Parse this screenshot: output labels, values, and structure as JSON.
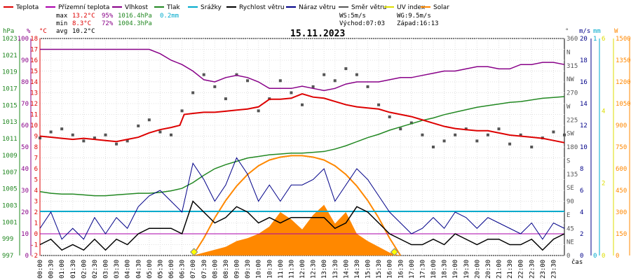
{
  "chart_data": {
    "type": "line",
    "title": "15.11.2023",
    "legend": [
      {
        "name": "Teplota",
        "color": "#dd0000"
      },
      {
        "name": "Přízemní teplota",
        "color": "#aa00aa"
      },
      {
        "name": "Vlhkost",
        "color": "#880088"
      },
      {
        "name": "Tlak",
        "color": "#228822"
      },
      {
        "name": "Srážky",
        "color": "#00aacc"
      },
      {
        "name": "Rychlost větru",
        "color": "#000000"
      },
      {
        "name": "Náraz větru",
        "color": "#000088"
      },
      {
        "name": "Směr větru",
        "color": "#555555"
      },
      {
        "name": "UV index",
        "color": "#dddd00"
      },
      {
        "name": "Solar",
        "color": "#ff8800"
      }
    ],
    "stats": {
      "max_label": "max",
      "max_temp": "13.2°C",
      "max_hum": "95%",
      "max_press": "1016.4hPa",
      "max_rain": "0.2mm",
      "min_label": "min",
      "min_temp": "8.3°C",
      "min_hum": "72%",
      "min_press": "1004.3hPa",
      "avg_label": "avg",
      "avg_temp": "10.2°C"
    },
    "wind_info": {
      "ws": "WS:5m/s",
      "wg": "WG:9.5m/s",
      "sunrise": "Východ:07:03",
      "sunset": "Západ:16:13"
    },
    "axis_units": {
      "hpa": "hPa",
      "pct": "%",
      "degc": "°C",
      "deg": "°",
      "ms": "m/s",
      "mm": "mm",
      "w": "W",
      "time": "čas"
    },
    "axes": {
      "hpa": {
        "color": "#228822",
        "ticks": [
          "1023",
          "1021",
          "1019",
          "1017",
          "1015",
          "1013",
          "1011",
          "1009",
          "1007",
          "1005",
          "1003",
          "1001",
          "999",
          "997"
        ]
      },
      "pct": {
        "color": "#880088",
        "ticks": [
          "100",
          "90",
          "80",
          "70",
          "60",
          "50",
          "40",
          "30",
          "20",
          "10",
          "0"
        ]
      },
      "degc": {
        "color": "#dd0000",
        "ticks": [
          "18",
          "17",
          "16",
          "15",
          "14",
          "13",
          "12",
          "11",
          "10",
          "9",
          "8",
          "7",
          "6",
          "5",
          "4",
          "3",
          "2",
          "1",
          "0",
          "-1",
          "-2"
        ]
      },
      "dir": {
        "color": "#555555",
        "ticks": [
          "360",
          "N",
          "315",
          "NW",
          "270",
          "W",
          "225",
          "SW",
          "180",
          "S",
          "135",
          "SE",
          "90",
          "E",
          "45",
          "NE",
          "0"
        ]
      },
      "ms": {
        "color": "#000088",
        "ticks": [
          "20",
          "18",
          "16",
          "14",
          "12",
          "10",
          "8",
          "6",
          "4",
          "2",
          "0"
        ]
      },
      "mm": {
        "color": "#00aacc",
        "ticks": [
          "1",
          "0"
        ]
      },
      "uv": {
        "color": "#dddd00",
        "ticks": [
          "6",
          "4",
          "2",
          "0"
        ]
      },
      "w": {
        "color": "#ff8800",
        "ticks": [
          "1500",
          "1350",
          "1200",
          "1050",
          "900",
          "750",
          "600",
          "450",
          "300",
          "150",
          "0"
        ]
      }
    },
    "x_ticks": [
      "00:00",
      "00:30",
      "01:00",
      "01:30",
      "02:00",
      "02:30",
      "03:00",
      "03:30",
      "04:00",
      "04:30",
      "05:00",
      "05:30",
      "06:00",
      "06:30",
      "07:00",
      "07:30",
      "08:00",
      "08:30",
      "09:00",
      "09:30",
      "10:00",
      "10:30",
      "11:00",
      "11:30",
      "12:00",
      "12:30",
      "13:00",
      "13:30",
      "14:00",
      "14:30",
      "15:00",
      "15:30",
      "16:00",
      "16:30",
      "17:00",
      "17:30",
      "18:00",
      "18:30",
      "19:00",
      "19:30",
      "20:00",
      "20:30",
      "21:00",
      "21:30",
      "22:00",
      "22:30",
      "23:00",
      "23:30"
    ],
    "series": {
      "teplota": {
        "x": [
          0,
          0.5,
          1,
          1.5,
          2,
          2.5,
          3,
          3.5,
          4,
          4.5,
          5,
          5.5,
          6,
          6.4,
          6.6,
          7,
          7.5,
          8,
          8.5,
          9,
          9.5,
          10,
          10.5,
          11,
          11.5,
          12,
          12.5,
          13,
          13.5,
          14,
          14.5,
          15,
          15.5,
          16,
          16.5,
          17,
          17.5,
          18,
          18.5,
          19,
          19.5,
          20,
          20.5,
          21,
          21.5,
          22,
          22.5,
          23,
          23.5,
          24
        ],
        "y": [
          9.0,
          8.9,
          8.8,
          8.7,
          8.8,
          8.7,
          8.6,
          8.5,
          8.7,
          8.9,
          9.3,
          9.6,
          9.8,
          10.0,
          11.0,
          11.1,
          11.2,
          11.2,
          11.3,
          11.4,
          11.5,
          11.7,
          12.4,
          12.4,
          12.5,
          12.9,
          12.6,
          12.5,
          12.2,
          11.9,
          11.7,
          11.6,
          11.5,
          11.2,
          11.0,
          10.8,
          10.5,
          10.2,
          9.9,
          9.7,
          9.6,
          9.5,
          9.5,
          9.3,
          9.1,
          9.0,
          8.9,
          8.8,
          8.6,
          8.4
        ]
      },
      "vlhkost": {
        "x": [
          0,
          1,
          2,
          3,
          4,
          5,
          5.5,
          6,
          6.5,
          7,
          7.5,
          8,
          8.5,
          9,
          9.5,
          10,
          10.5,
          11,
          11.5,
          12,
          12.5,
          13,
          13.5,
          14,
          14.5,
          15,
          15.5,
          16,
          16.5,
          17,
          17.5,
          18,
          18.5,
          19,
          19.5,
          20,
          20.5,
          21,
          21.5,
          22,
          22.5,
          23,
          23.5,
          24
        ],
        "y": [
          95,
          95,
          95,
          95,
          95,
          95,
          93,
          90,
          88,
          85,
          81,
          80,
          82,
          83,
          82,
          80,
          77,
          77,
          77,
          78,
          77,
          76,
          77,
          79,
          80,
          80,
          80,
          81,
          82,
          82,
          83,
          84,
          85,
          85,
          86,
          87,
          87,
          86,
          86,
          88,
          88,
          89,
          89,
          88
        ]
      },
      "tlak": {
        "x": [
          0,
          0.5,
          1,
          1.5,
          2,
          2.5,
          3,
          3.5,
          4,
          4.5,
          5,
          5.5,
          6,
          6.5,
          7,
          7.5,
          8,
          8.5,
          9,
          9.5,
          10,
          10.5,
          11,
          11.5,
          12,
          12.5,
          13,
          13.5,
          14,
          14.5,
          15,
          15.5,
          16,
          16.5,
          17,
          17.5,
          18,
          18.5,
          19,
          19.5,
          20,
          20.5,
          21,
          21.5,
          22,
          22.5,
          23,
          23.5,
          24
        ],
        "y": [
          1004.8,
          1004.6,
          1004.5,
          1004.5,
          1004.4,
          1004.3,
          1004.3,
          1004.4,
          1004.5,
          1004.6,
          1004.6,
          1004.7,
          1004.9,
          1005.2,
          1005.9,
          1006.8,
          1007.6,
          1008.1,
          1008.5,
          1008.9,
          1009.1,
          1009.3,
          1009.4,
          1009.5,
          1009.5,
          1009.6,
          1009.7,
          1010.0,
          1010.4,
          1010.9,
          1011.4,
          1011.8,
          1012.3,
          1012.7,
          1013.1,
          1013.5,
          1013.8,
          1014.2,
          1014.5,
          1014.8,
          1015.1,
          1015.3,
          1015.5,
          1015.7,
          1015.8,
          1016.0,
          1016.2,
          1016.3,
          1016.4
        ]
      },
      "srazky": {
        "x": [
          0,
          24
        ],
        "y": [
          0.2,
          0.2
        ]
      },
      "rychlost": {
        "x": [
          0,
          0.5,
          1,
          1.5,
          2,
          2.5,
          3,
          3.5,
          4,
          4.5,
          5,
          5.5,
          6,
          6.5,
          7,
          7.5,
          8,
          8.5,
          9,
          9.5,
          10,
          10.5,
          11,
          11.5,
          12,
          12.5,
          13,
          13.5,
          14,
          14.5,
          15,
          15.5,
          16,
          16.5,
          17,
          17.5,
          18,
          18.5,
          19,
          19.5,
          20,
          20.5,
          21,
          21.5,
          22,
          22.5,
          23,
          23.5,
          24
        ],
        "y": [
          1.0,
          1.5,
          0.5,
          1.0,
          0.5,
          1.5,
          0.5,
          1.5,
          1.0,
          2.0,
          2.5,
          2.5,
          2.5,
          2.0,
          5.0,
          4.0,
          3.0,
          3.5,
          4.5,
          4.0,
          3.0,
          3.5,
          3.0,
          3.5,
          3.5,
          3.5,
          3.5,
          2.5,
          3.0,
          4.5,
          4.0,
          3.0,
          2.0,
          1.5,
          1.0,
          1.0,
          1.5,
          1.0,
          2.0,
          1.5,
          1.0,
          1.5,
          1.5,
          1.0,
          1.0,
          1.5,
          0.5,
          1.5,
          2.0
        ]
      },
      "naraz": {
        "x": [
          0,
          0.5,
          1,
          1.5,
          2,
          2.5,
          3,
          3.5,
          4,
          4.5,
          5,
          5.5,
          6,
          6.5,
          7,
          7.5,
          8,
          8.5,
          9,
          9.5,
          10,
          10.5,
          11,
          11.5,
          12,
          12.5,
          13,
          13.5,
          14,
          14.5,
          15,
          15.5,
          16,
          16.5,
          17,
          17.5,
          18,
          18.5,
          19,
          19.5,
          20,
          20.5,
          21,
          21.5,
          22,
          22.5,
          23,
          23.5,
          24
        ],
        "y": [
          2.5,
          4.0,
          1.5,
          2.5,
          1.5,
          3.5,
          2.0,
          3.5,
          2.5,
          4.5,
          5.5,
          6.0,
          5.0,
          4.0,
          8.5,
          7.0,
          5.0,
          6.5,
          9.0,
          7.5,
          5.0,
          6.5,
          5.0,
          6.5,
          6.5,
          7.0,
          8.0,
          5.0,
          6.5,
          8.0,
          7.0,
          5.5,
          4.0,
          3.0,
          2.0,
          2.5,
          3.5,
          2.5,
          4.0,
          3.5,
          2.5,
          3.5,
          3.0,
          2.5,
          2.0,
          3.0,
          1.5,
          3.0,
          2.5
        ]
      },
      "smer": {
        "x": [
          0,
          0.5,
          1,
          1.5,
          2,
          2.5,
          3,
          3.5,
          4,
          4.5,
          5,
          5.5,
          6,
          6.5,
          7,
          7.5,
          8,
          8.5,
          9,
          9.5,
          10,
          10.5,
          11,
          11.5,
          12,
          12.5,
          13,
          13.5,
          14,
          14.5,
          15,
          15.5,
          16,
          16.5,
          17,
          17.5,
          18,
          18.5,
          19,
          19.5,
          20,
          20.5,
          21,
          21.5,
          22,
          22.5,
          23,
          23.5,
          24
        ],
        "y": [
          195,
          205,
          210,
          200,
          190,
          195,
          200,
          185,
          190,
          215,
          225,
          205,
          200,
          240,
          270,
          300,
          280,
          260,
          300,
          290,
          240,
          260,
          290,
          270,
          250,
          280,
          300,
          290,
          310,
          300,
          280,
          250,
          230,
          210,
          220,
          200,
          180,
          190,
          200,
          210,
          190,
          200,
          210,
          185,
          200,
          180,
          195,
          205,
          200
        ]
      },
      "solar": {
        "x": [
          7,
          7.5,
          8,
          8.5,
          9,
          9.5,
          10,
          10.5,
          11,
          11.5,
          12,
          12.5,
          13,
          13.5,
          14,
          14.5,
          15,
          15.5,
          16,
          16.5
        ],
        "y": [
          0,
          20,
          40,
          60,
          100,
          120,
          150,
          200,
          300,
          250,
          180,
          280,
          350,
          220,
          300,
          150,
          100,
          60,
          20,
          0
        ]
      },
      "solar_max": {
        "x": [
          7,
          7.5,
          8,
          8.5,
          9,
          9.5,
          10,
          10.5,
          11,
          11.5,
          12,
          12.5,
          13,
          13.5,
          14,
          14.5,
          15,
          15.5,
          16,
          16.5
        ],
        "y": [
          0,
          120,
          260,
          380,
          480,
          560,
          620,
          660,
          680,
          690,
          690,
          680,
          660,
          620,
          560,
          480,
          380,
          260,
          120,
          0
        ]
      },
      "uv": {
        "x": [
          0,
          24
        ],
        "y": [
          0,
          0
        ]
      }
    },
    "xlim": [
      0,
      24
    ],
    "grid": true
  }
}
